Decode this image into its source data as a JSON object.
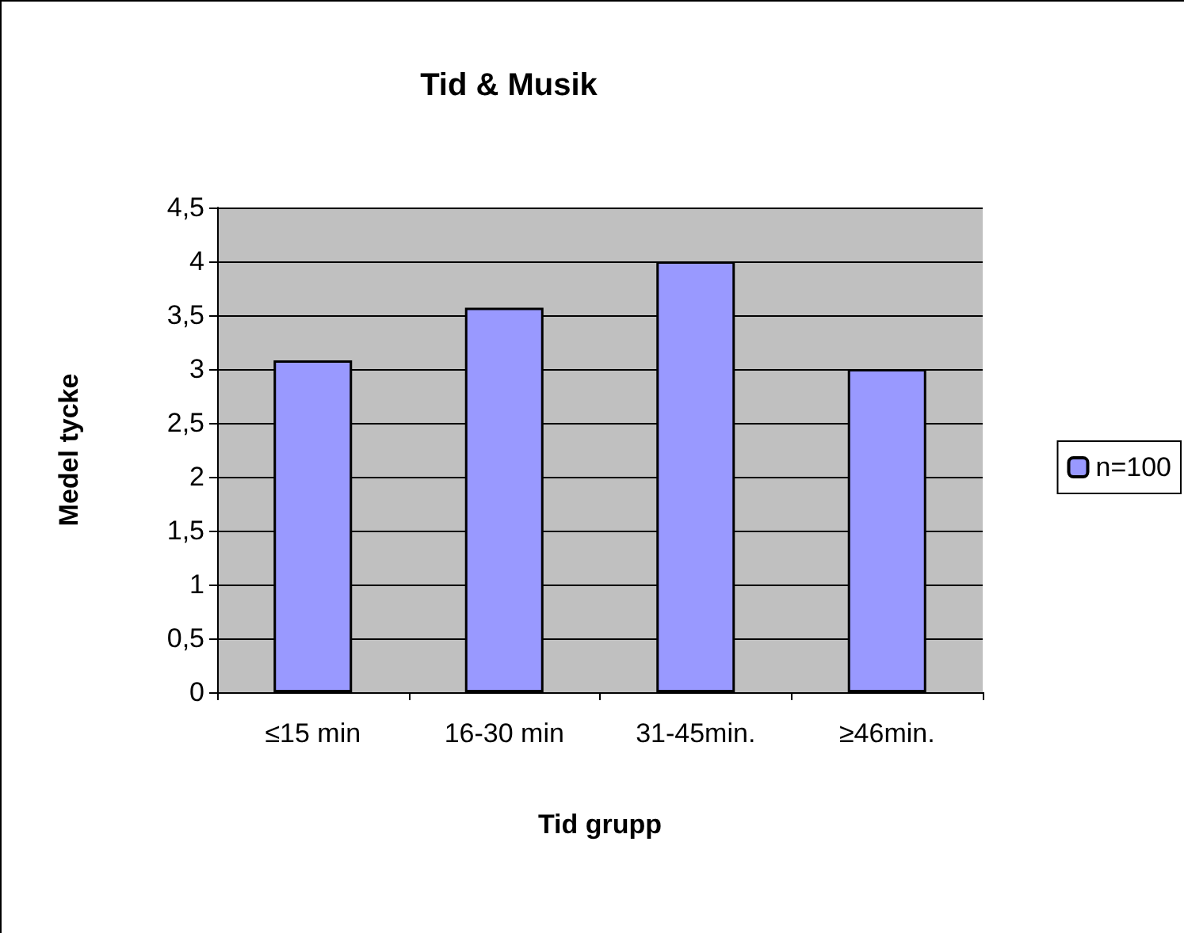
{
  "chart_data": {
    "type": "bar",
    "title": "Tid & Musik",
    "xlabel": "Tid grupp",
    "ylabel": "Medel tycke",
    "categories": [
      "≤15 min",
      "16-30 min",
      "31-45min.",
      "≥46min."
    ],
    "series": [
      {
        "name": "n=100",
        "color": "#9999ff",
        "values": [
          3.08,
          3.57,
          4.0,
          3.0
        ]
      }
    ],
    "ylim": [
      0,
      4.5
    ],
    "yticks": [
      0,
      {
        "value": 0.5,
        "label": "0,5"
      },
      1,
      {
        "value": 1.5,
        "label": "1,5"
      },
      2,
      {
        "value": 2.5,
        "label": "2,5"
      },
      3,
      {
        "value": 3.5,
        "label": "3,5"
      },
      4,
      {
        "value": 4.5,
        "label": "4,5"
      }
    ],
    "grid": "y",
    "legend": "right"
  }
}
